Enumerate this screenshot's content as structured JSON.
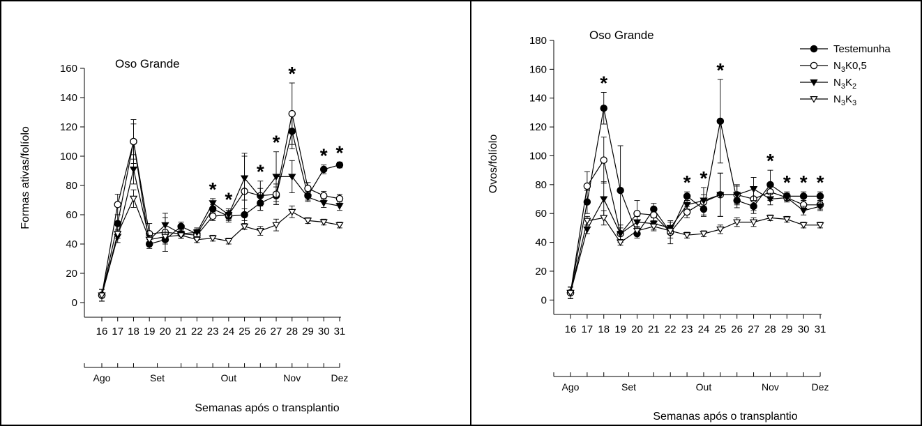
{
  "chart_data": [
    {
      "type": "line",
      "title": "Oso Grande",
      "xlabel": "Semanas após o transplantio",
      "ylabel": "Formas ativas/folíolo",
      "ylim": [
        -10,
        160
      ],
      "yticks": [
        0,
        20,
        40,
        60,
        80,
        100,
        120,
        140,
        160
      ],
      "x": [
        16,
        17,
        18,
        19,
        20,
        21,
        22,
        23,
        24,
        25,
        26,
        27,
        28,
        29,
        30,
        31
      ],
      "months": [
        {
          "label": "Ago",
          "x": 16
        },
        {
          "label": "Set",
          "x": 19.5
        },
        {
          "label": "Out",
          "x": 24
        },
        {
          "label": "Nov",
          "x": 28
        },
        {
          "label": "Dez",
          "x": 31
        }
      ],
      "month_ticks": [
        16,
        17,
        18,
        19.5,
        21,
        22,
        23,
        24,
        25,
        26,
        27,
        28,
        29,
        30,
        31
      ],
      "series": [
        {
          "marker": "circle-filled",
          "values": [
            5,
            54,
            110,
            40,
            43,
            52,
            47,
            64,
            59,
            60,
            68,
            73,
            117,
            73,
            91,
            94
          ],
          "errors": [
            4,
            6,
            12,
            3,
            3,
            3,
            3,
            3,
            4,
            4,
            5,
            6,
            12,
            3,
            3,
            2
          ]
        },
        {
          "marker": "circle-open",
          "values": [
            5,
            67,
            110,
            47,
            48,
            47,
            46,
            59,
            60,
            76,
            73,
            74,
            129,
            78,
            73,
            71
          ],
          "errors": [
            4,
            7,
            15,
            7,
            13,
            3,
            3,
            3,
            3,
            26,
            10,
            7,
            21,
            4,
            3,
            3
          ]
        },
        {
          "marker": "triangle-down-filled",
          "values": [
            5,
            45,
            91,
            43,
            53,
            47,
            48,
            68,
            60,
            85,
            72,
            86,
            86,
            72,
            68,
            66
          ],
          "errors": [
            4,
            4,
            10,
            3,
            5,
            3,
            3,
            3,
            4,
            15,
            6,
            17,
            11,
            3,
            3,
            3
          ]
        },
        {
          "marker": "triangle-down-open",
          "values": [
            5,
            47,
            71,
            43,
            45,
            46,
            43,
            44,
            42,
            52,
            49,
            53,
            62,
            56,
            55,
            53
          ],
          "errors": [
            4,
            3,
            6,
            3,
            3,
            2,
            2,
            2,
            2,
            2,
            3,
            4,
            4,
            2,
            2,
            2
          ]
        }
      ],
      "significance": [
        {
          "x": 23,
          "label": "*"
        },
        {
          "x": 24,
          "label": "*"
        },
        {
          "x": 26,
          "label": "*"
        },
        {
          "x": 27,
          "label": "*"
        },
        {
          "x": 28,
          "label": "*"
        },
        {
          "x": 30,
          "label": "*"
        },
        {
          "x": 31,
          "label": "*"
        }
      ]
    },
    {
      "type": "line",
      "title": "Oso Grande",
      "xlabel": "Semanas após o transplantio",
      "ylabel": "Ovos/folíolo",
      "ylim": [
        -10,
        180
      ],
      "yticks": [
        0,
        20,
        40,
        60,
        80,
        100,
        120,
        140,
        160,
        180
      ],
      "x": [
        16,
        17,
        18,
        19,
        20,
        21,
        22,
        23,
        24,
        25,
        26,
        27,
        28,
        29,
        30,
        31
      ],
      "months": [
        {
          "label": "Ago",
          "x": 16
        },
        {
          "label": "Set",
          "x": 19.5
        },
        {
          "label": "Out",
          "x": 24
        },
        {
          "label": "Nov",
          "x": 28
        },
        {
          "label": "Dez",
          "x": 31
        }
      ],
      "month_ticks": [
        16,
        17,
        18,
        19.5,
        21,
        22,
        23,
        24,
        25,
        26,
        27,
        28,
        29,
        30,
        31
      ],
      "legend": [
        {
          "base": "Testemunha",
          "sub1": "",
          "mid": "",
          "sub2": "",
          "marker": "circle-filled"
        },
        {
          "base": "N",
          "sub1": "3",
          "mid": "K0,5",
          "sub2": "",
          "marker": "circle-open"
        },
        {
          "base": "N",
          "sub1": "3",
          "mid": "K",
          "sub2": "2",
          "marker": "triangle-down-filled"
        },
        {
          "base": "N",
          "sub1": "3",
          "mid": "K",
          "sub2": "3",
          "marker": "triangle-down-open"
        }
      ],
      "series": [
        {
          "marker": "circle-filled",
          "values": [
            5,
            68,
            133,
            76,
            46,
            63,
            47,
            72,
            63,
            124,
            69,
            65,
            80,
            72,
            72,
            72
          ],
          "errors": [
            4,
            8,
            11,
            31,
            3,
            4,
            4,
            3,
            4,
            29,
            5,
            5,
            10,
            3,
            3,
            3
          ]
        },
        {
          "marker": "circle-open",
          "values": [
            5,
            79,
            97,
            46,
            60,
            59,
            47,
            61,
            68,
            73,
            73,
            70,
            75,
            71,
            66,
            66
          ],
          "errors": [
            4,
            10,
            16,
            6,
            9,
            4,
            8,
            4,
            10,
            15,
            7,
            8,
            6,
            3,
            3,
            3
          ]
        },
        {
          "marker": "triangle-down-filled",
          "values": [
            5,
            49,
            70,
            46,
            54,
            53,
            50,
            66,
            69,
            73,
            73,
            77,
            70,
            71,
            62,
            65
          ],
          "errors": [
            4,
            3,
            12,
            4,
            4,
            4,
            4,
            3,
            4,
            15,
            6,
            8,
            4,
            3,
            3,
            3
          ]
        },
        {
          "marker": "triangle-down-open",
          "values": [
            5,
            55,
            57,
            40,
            48,
            51,
            48,
            45,
            46,
            49,
            54,
            54,
            57,
            56,
            52,
            52
          ],
          "errors": [
            4,
            3,
            5,
            2,
            3,
            3,
            2,
            2,
            2,
            3,
            3,
            3,
            2,
            2,
            2,
            2
          ]
        }
      ],
      "significance": [
        {
          "x": 18,
          "label": "*"
        },
        {
          "x": 23,
          "label": "*"
        },
        {
          "x": 24,
          "label": "*"
        },
        {
          "x": 25,
          "label": "*"
        },
        {
          "x": 28,
          "label": "*"
        },
        {
          "x": 29,
          "label": "*"
        },
        {
          "x": 30,
          "label": "*"
        },
        {
          "x": 31,
          "label": "*"
        }
      ]
    }
  ]
}
